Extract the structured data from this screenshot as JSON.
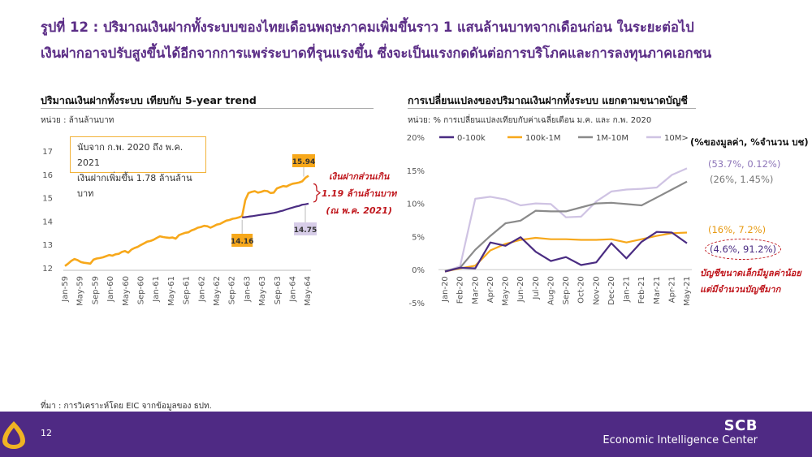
{
  "title": {
    "line1": "รูปที่ 12 : ปริมาณเงินฝากทั้งระบบของไทยเดือนพฤษภาคมเพิ่มขึ้นราว 1 แสนล้านบาทจากเดือนก่อน ในระยะต่อไป",
    "line2": "เงินฝากอาจปรับสูงขึ้นได้อีกจากการแพร่ระบาดที่รุนแรงขึ้น ซึ่งจะเป็นแรงกดดันต่อการบริโภคและการลงทุนภาคเอกชน"
  },
  "colors": {
    "title": "#5b2d86",
    "footer": "#4f2a84",
    "orange": "#f7a81b",
    "purple": "#4a2c82",
    "gray": "#8a8a8a",
    "lavender": "#cfc3e3",
    "red": "#c0181e",
    "gold": "#f0b323"
  },
  "left_chart": {
    "title": "ปริมาณเงินฝากทั้งระบบ เทียบกับ 5-year trend",
    "unit": "หน่วย : ล้านล้านบาท",
    "note_line1": "นับจาก ก.พ. 2020 ถึง พ.ค. 2021",
    "note_line2": "เงินฝากเพิ่มขึ้น 1.78 ล้านล้านบาท",
    "callout_line1": "เงินฝากส่วนเกิน",
    "callout_line2": "1.19 ล้านล้านบาท",
    "callout_line3": "(ณ พ.ค. 2021)",
    "label_start": "14.16",
    "label_actual_end": "15.94",
    "label_trend_end": "14.75"
  },
  "right_chart": {
    "title": "การเปลี่ยนแปลงของปริมาณเงินฝากทั้งระบบ แยกตามขนาดบัญชี",
    "unit": "หน่วย: % การเปลี่ยนแปลงเทียบกับค่าเฉลี่ยเดือน ม.ค. และ ก.พ. 2020",
    "legend_title": "(%ของมูลค่า, %จำนวน บช)",
    "ann_10m": "(53.7%, 0.12%)",
    "ann_1m_10m": "(26%,   1.45%)",
    "ann_100k_1m": "(16%,   7.2%)",
    "ann_0_100k": "(4.6%,  91.2%)",
    "note_line1": "บัญชีขนาดเล็กมีมูลค่าน้อย",
    "note_line2": "แต่มีจำนวนบัญชีมาก"
  },
  "chart_data": [
    {
      "type": "line",
      "title": "ปริมาณเงินฝากทั้งระบบ เทียบกับ 5-year trend",
      "ylabel": "หน่วย : ล้านล้านบาท",
      "ylim": [
        12,
        17
      ],
      "yticks": [
        12,
        13,
        14,
        15,
        16,
        17
      ],
      "xtick_labels": [
        "Jan-59",
        "May-59",
        "Sep-59",
        "Jan-60",
        "May-60",
        "Sep-60",
        "Jan-61",
        "May-61",
        "Sep-61",
        "Jan-62",
        "May-62",
        "Sep-62",
        "Jan-63",
        "May-63",
        "Sep-63",
        "Jan-64",
        "May-64"
      ],
      "series": [
        {
          "name": "actual",
          "color": "#f7a81b",
          "values": [
            12.08,
            12.18,
            12.3,
            12.38,
            12.33,
            12.25,
            12.22,
            12.2,
            12.18,
            12.35,
            12.4,
            12.42,
            12.45,
            12.5,
            12.55,
            12.52,
            12.58,
            12.6,
            12.68,
            12.72,
            12.65,
            12.78,
            12.85,
            12.9,
            12.98,
            13.05,
            13.12,
            13.15,
            13.2,
            13.28,
            13.35,
            13.32,
            13.3,
            13.28,
            13.3,
            13.25,
            13.4,
            13.45,
            13.5,
            13.52,
            13.6,
            13.65,
            13.72,
            13.75,
            13.8,
            13.78,
            13.72,
            13.78,
            13.85,
            13.88,
            13.95,
            14.02,
            14.05,
            14.1,
            14.12,
            14.16,
            14.22,
            14.9,
            15.2,
            15.25,
            15.28,
            15.22,
            15.25,
            15.3,
            15.28,
            15.2,
            15.22,
            15.4,
            15.45,
            15.5,
            15.48,
            15.55,
            15.6,
            15.62,
            15.65,
            15.7,
            15.85,
            15.94
          ]
        },
        {
          "name": "trend",
          "color": "#4a2c82",
          "values": [
            14.16,
            14.17,
            14.19,
            14.21,
            14.23,
            14.25,
            14.27,
            14.29,
            14.31,
            14.33,
            14.35,
            14.38,
            14.42,
            14.45,
            14.5,
            14.54,
            14.58,
            14.62,
            14.65,
            14.7,
            14.72,
            14.75
          ]
        }
      ]
    },
    {
      "type": "line",
      "title": "การเปลี่ยนแปลงของปริมาณเงินฝากทั้งระบบ แยกตามขนาดบัญชี",
      "ylabel": "หน่วย: % การเปลี่ยนแปลงเทียบกับค่าเฉลี่ยเดือน ม.ค. และ ก.พ. 2020",
      "ylim": [
        -5,
        20
      ],
      "ytick_labels": [
        "-5%",
        "0%",
        "5%",
        "10%",
        "15%",
        "20%"
      ],
      "yticks": [
        -5,
        0,
        5,
        10,
        15,
        20
      ],
      "categories": [
        "Jan-20",
        "Feb-20",
        "Mar-20",
        "Apr-20",
        "May-20",
        "Jun-20",
        "Jul-20",
        "Aug-20",
        "Sep-20",
        "Oct-20",
        "Nov-20",
        "Dec-20",
        "Jan-21",
        "Feb-21",
        "Mar-21",
        "Apr-21",
        "May-21"
      ],
      "legend_position": "top",
      "series": [
        {
          "name": "0-100k",
          "color": "#4a2c82",
          "values": [
            -0.3,
            0.3,
            0.2,
            4.1,
            3.6,
            4.9,
            2.7,
            1.3,
            1.9,
            0.7,
            1.1,
            4.0,
            1.7,
            4.2,
            5.7,
            5.6,
            4.0
          ]
        },
        {
          "name": "100k-1M",
          "color": "#f7a81b",
          "values": [
            -0.3,
            0.2,
            0.6,
            2.9,
            3.9,
            4.5,
            4.8,
            4.6,
            4.6,
            4.5,
            4.5,
            4.6,
            4.1,
            4.6,
            5.1,
            5.5,
            5.6
          ]
        },
        {
          "name": "1M-10M",
          "color": "#8a8a8a",
          "values": [
            -0.2,
            0.3,
            3.0,
            5.1,
            7.0,
            7.4,
            8.9,
            8.8,
            8.8,
            9.4,
            10.0,
            10.1,
            9.9,
            9.7,
            10.9,
            12.1,
            13.3
          ]
        },
        {
          "name": "10M>",
          "color": "#cfc3e3",
          "values": [
            -0.3,
            0.5,
            10.7,
            11.0,
            10.6,
            9.7,
            10.0,
            9.9,
            7.9,
            8.0,
            10.3,
            11.8,
            12.1,
            12.2,
            12.4,
            14.3,
            15.3
          ]
        }
      ]
    }
  ],
  "source": "ที่มา : การวิเคราะห์โดย EIC จากข้อมูลของ ธปท.",
  "footer": {
    "page_number": "12",
    "brand_name": "SCB",
    "brand_sub": "Economic Intelligence Center"
  }
}
